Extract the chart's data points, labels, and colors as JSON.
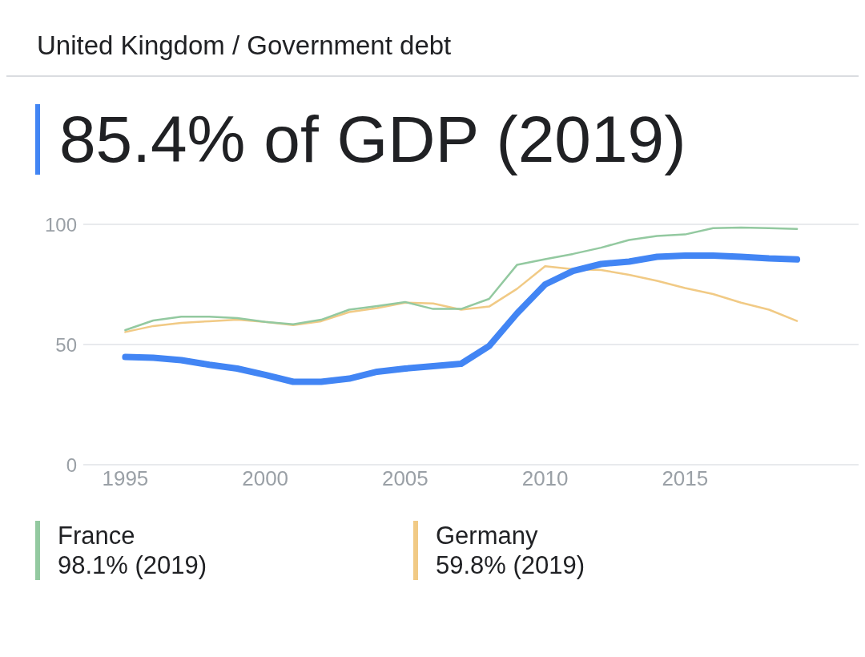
{
  "chart_data": {
    "type": "line",
    "title": "United Kingdom / Government debt",
    "subtitle": "85.4% of GDP (2019)",
    "x": [
      1995,
      1996,
      1997,
      1998,
      1999,
      2000,
      2001,
      2002,
      2003,
      2004,
      2005,
      2006,
      2007,
      2008,
      2009,
      2010,
      2011,
      2012,
      2013,
      2014,
      2015,
      2016,
      2017,
      2018,
      2019
    ],
    "series": [
      {
        "color": "#4285f4",
        "values": [
          44.8,
          44.5,
          43.5,
          41.6,
          40,
          37.4,
          34.5,
          34.5,
          35.8,
          38.7,
          40,
          41,
          42,
          49.4,
          63,
          75,
          80.6,
          83.5,
          84.5,
          86.5,
          87,
          87,
          86.5,
          85.8,
          85.4
        ]
      },
      {
        "name": "France",
        "color": "#93c9a0",
        "values": [
          56,
          60,
          61.6,
          61.6,
          61,
          59.4,
          58.4,
          60.3,
          64.5,
          66,
          67.7,
          64.8,
          64.8,
          69,
          83.2,
          85.5,
          87.7,
          90.3,
          93.5,
          95.2,
          95.8,
          98.4,
          98.7,
          98.4,
          98.1
        ]
      },
      {
        "name": "Germany",
        "color": "#f1ca85",
        "values": [
          55.2,
          57.7,
          59,
          59.7,
          60.3,
          59.4,
          58.1,
          59.7,
          63.5,
          65.2,
          67.4,
          67.1,
          64.5,
          65.8,
          73.2,
          82.6,
          81.3,
          81,
          79,
          76.5,
          73.5,
          71,
          67.4,
          64.5,
          59.8
        ]
      }
    ],
    "annotations": [
      "98.1% (2019)",
      "59.8% (2019)"
    ],
    "xlim": [
      1993.5,
      2021.2
    ],
    "xticks": [
      1995,
      2000,
      2005,
      2010,
      2015
    ],
    "ylim": [
      0,
      100
    ],
    "yticks": [
      0,
      50,
      100
    ],
    "grid": "y",
    "legend": "bottom",
    "marker": "none",
    "line_style": "solid"
  }
}
